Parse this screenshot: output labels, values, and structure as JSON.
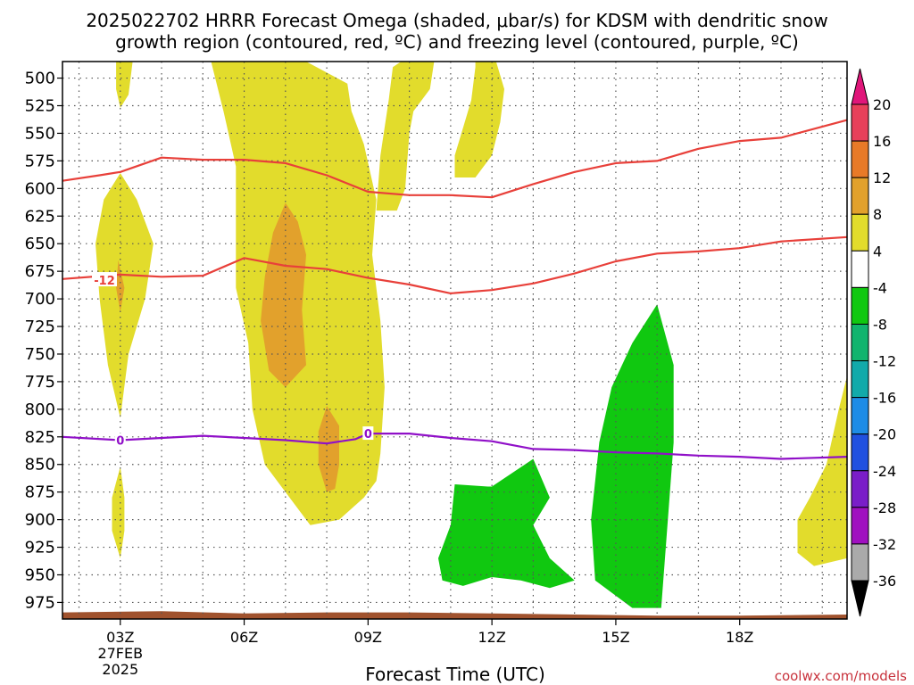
{
  "chart_data": {
    "type": "heatmap",
    "title_line1": "2025022702 HRRR Forecast Omega (shaded, μbar/s) for KDSM with dendritic snow",
    "title_line2": "growth region (contoured, red, ºC) and freezing level (contoured, purple, ºC)",
    "xlabel": "Forecast Time (UTC)",
    "credit": "coolwx.com/models",
    "x_range": [
      1.6,
      20.6
    ],
    "y_range": [
      485,
      990
    ],
    "y_ticks": [
      "500",
      "525",
      "550",
      "575",
      "600",
      "625",
      "650",
      "675",
      "700",
      "725",
      "750",
      "775",
      "800",
      "825",
      "850",
      "875",
      "900",
      "925",
      "950",
      "975"
    ],
    "x_ticks": [
      {
        "x": 3,
        "label": "03Z",
        "date": "27FEB",
        "year": "2025"
      },
      {
        "x": 6,
        "label": "06Z"
      },
      {
        "x": 9,
        "label": "09Z"
      },
      {
        "x": 12,
        "label": "12Z"
      },
      {
        "x": 15,
        "label": "15Z"
      },
      {
        "x": 18,
        "label": "18Z"
      }
    ],
    "colorbar": {
      "labels": [
        "20",
        "16",
        "12",
        "8",
        "4",
        "-4",
        "-8",
        "-12",
        "-16",
        "-20",
        "-24",
        "-28",
        "-32",
        "-36"
      ],
      "colors": [
        "#e8405a",
        "#e87a28",
        "#e2a12c",
        "#e2dc2c",
        "#ffffff",
        "#10c810",
        "#12b46e",
        "#12aaaa",
        "#1e8ce6",
        "#2050e0",
        "#7a1ec8",
        "#a010c0",
        "#aaaaaa"
      ],
      "top_arrow_color": "#e0167a",
      "bottom_arrow_color": "#000000"
    },
    "series": [
      {
        "color": "#e8403a",
        "label": "-12",
        "label_at": [
          2.4,
          683
        ],
        "points": [
          [
            1.6,
            682
          ],
          [
            3,
            678
          ],
          [
            4,
            680
          ],
          [
            5,
            679
          ],
          [
            6,
            663
          ],
          [
            7,
            670
          ],
          [
            8,
            673
          ],
          [
            9,
            681
          ],
          [
            10,
            687
          ],
          [
            11,
            695
          ],
          [
            12,
            692
          ],
          [
            13,
            686
          ],
          [
            14,
            677
          ],
          [
            15,
            666
          ],
          [
            16,
            659
          ],
          [
            17,
            657
          ],
          [
            18,
            654
          ],
          [
            19,
            648
          ],
          [
            20.6,
            644
          ]
        ]
      },
      {
        "color": "#e8403a",
        "points": [
          [
            1.6,
            593
          ],
          [
            2.5,
            588
          ],
          [
            3,
            585
          ],
          [
            4,
            572
          ],
          [
            5,
            574
          ],
          [
            6,
            574
          ],
          [
            7,
            577
          ],
          [
            8,
            588
          ],
          [
            9,
            603
          ],
          [
            10,
            606
          ],
          [
            11,
            606
          ],
          [
            12,
            608
          ],
          [
            13,
            596
          ],
          [
            14,
            585
          ],
          [
            15,
            577
          ],
          [
            16,
            575
          ],
          [
            17,
            564
          ],
          [
            18,
            557
          ],
          [
            19,
            554
          ],
          [
            20.6,
            538
          ]
        ]
      },
      {
        "color": "#9010c8",
        "label": "0",
        "points": [
          [
            1.6,
            825
          ],
          [
            3,
            828
          ],
          [
            4,
            826
          ],
          [
            5,
            824
          ],
          [
            6,
            826
          ],
          [
            7,
            828
          ],
          [
            8,
            831
          ],
          [
            8.7,
            827
          ],
          [
            9,
            822
          ],
          [
            10,
            822
          ],
          [
            11,
            826
          ],
          [
            12,
            829
          ],
          [
            13,
            836
          ],
          [
            14,
            837
          ],
          [
            15,
            839
          ],
          [
            16,
            840
          ],
          [
            17,
            842
          ],
          [
            18,
            843
          ],
          [
            19,
            845
          ],
          [
            20.6,
            843
          ]
        ]
      }
    ],
    "contour_labels": [
      {
        "text": "0",
        "x": 3.0,
        "y": 828
      },
      {
        "text": "0",
        "x": 9.0,
        "y": 822
      }
    ],
    "regions": [
      {
        "color": "#e2dc2c",
        "points": [
          [
            2.9,
            485
          ],
          [
            3.3,
            485
          ],
          [
            3.2,
            515
          ],
          [
            3.0,
            527
          ],
          [
            2.9,
            510
          ]
        ]
      },
      {
        "color": "#e2dc2c",
        "points": [
          [
            6.0,
            485
          ],
          [
            7.5,
            485
          ],
          [
            8.5,
            505
          ],
          [
            8.6,
            530
          ],
          [
            8.9,
            560
          ],
          [
            9.2,
            610
          ],
          [
            9.1,
            660
          ],
          [
            9.3,
            720
          ],
          [
            9.4,
            780
          ],
          [
            9.3,
            840
          ],
          [
            9.2,
            865
          ],
          [
            8.9,
            880
          ],
          [
            8.3,
            900
          ],
          [
            7.6,
            905
          ],
          [
            7.3,
            890
          ],
          [
            6.5,
            850
          ],
          [
            6.2,
            800
          ],
          [
            6.1,
            740
          ],
          [
            5.8,
            690
          ],
          [
            5.8,
            640
          ],
          [
            5.8,
            580
          ],
          [
            5.5,
            530
          ],
          [
            5.2,
            485
          ]
        ]
      },
      {
        "color": "#e2dc2c",
        "points": [
          [
            9.8,
            485
          ],
          [
            10.6,
            485
          ],
          [
            10.5,
            510
          ],
          [
            10.1,
            530
          ],
          [
            10.0,
            550
          ],
          [
            9.9,
            600
          ],
          [
            9.7,
            620
          ],
          [
            9.2,
            620
          ],
          [
            9.3,
            570
          ],
          [
            9.5,
            520
          ],
          [
            9.6,
            490
          ]
        ]
      },
      {
        "color": "#e2dc2c",
        "points": [
          [
            11.6,
            485
          ],
          [
            12.1,
            485
          ],
          [
            12.3,
            510
          ],
          [
            12.2,
            540
          ],
          [
            12.0,
            570
          ],
          [
            11.6,
            590
          ],
          [
            11.1,
            590
          ],
          [
            11.1,
            570
          ],
          [
            11.3,
            545
          ],
          [
            11.5,
            520
          ],
          [
            11.6,
            490
          ]
        ]
      },
      {
        "color": "#e2dc2c",
        "points": [
          [
            3.0,
            586
          ],
          [
            3.4,
            610
          ],
          [
            3.8,
            650
          ],
          [
            3.6,
            700
          ],
          [
            3.2,
            750
          ],
          [
            3.0,
            808
          ],
          [
            2.7,
            760
          ],
          [
            2.5,
            700
          ],
          [
            2.4,
            650
          ],
          [
            2.6,
            610
          ]
        ]
      },
      {
        "color": "#e2dc2c",
        "points": [
          [
            3.0,
            852
          ],
          [
            3.1,
            880
          ],
          [
            3.1,
            910
          ],
          [
            3.0,
            935
          ],
          [
            2.8,
            910
          ],
          [
            2.8,
            880
          ]
        ]
      },
      {
        "color": "#e2dc2c",
        "points": [
          [
            20.6,
            770
          ],
          [
            20.6,
            935
          ],
          [
            19.8,
            942
          ],
          [
            19.4,
            930
          ],
          [
            19.4,
            900
          ],
          [
            19.7,
            880
          ],
          [
            20.1,
            850
          ],
          [
            20.4,
            800
          ]
        ]
      },
      {
        "color": "#e2a12c",
        "points": [
          [
            7.0,
            613
          ],
          [
            7.3,
            630
          ],
          [
            7.5,
            660
          ],
          [
            7.4,
            710
          ],
          [
            7.5,
            760
          ],
          [
            7.0,
            780
          ],
          [
            6.6,
            765
          ],
          [
            6.4,
            720
          ],
          [
            6.5,
            680
          ],
          [
            6.7,
            640
          ]
        ]
      },
      {
        "color": "#e2a12c",
        "points": [
          [
            2.95,
            665
          ],
          [
            3.1,
            690
          ],
          [
            3.0,
            712
          ],
          [
            2.9,
            690
          ]
        ]
      },
      {
        "color": "#e2a12c",
        "points": [
          [
            8.0,
            797
          ],
          [
            8.3,
            815
          ],
          [
            8.3,
            850
          ],
          [
            8.2,
            872
          ],
          [
            8.0,
            875
          ],
          [
            7.8,
            850
          ],
          [
            7.8,
            820
          ]
        ]
      },
      {
        "color": "#10c810",
        "points": [
          [
            16.0,
            705
          ],
          [
            16.4,
            760
          ],
          [
            16.4,
            830
          ],
          [
            16.3,
            880
          ],
          [
            16.1,
            980
          ],
          [
            15.4,
            980
          ],
          [
            14.5,
            955
          ],
          [
            14.4,
            900
          ],
          [
            14.6,
            830
          ],
          [
            14.9,
            780
          ],
          [
            15.4,
            740
          ]
        ]
      },
      {
        "color": "#10c810",
        "points": [
          [
            11.1,
            868
          ],
          [
            11.9,
            870
          ],
          [
            12.0,
            870
          ],
          [
            13.0,
            845
          ],
          [
            13.4,
            880
          ],
          [
            13.0,
            905
          ],
          [
            13.4,
            935
          ],
          [
            14.0,
            955
          ],
          [
            13.4,
            962
          ],
          [
            12.7,
            955
          ],
          [
            12.0,
            952
          ],
          [
            11.3,
            960
          ],
          [
            10.8,
            955
          ],
          [
            10.7,
            935
          ],
          [
            11.0,
            905
          ]
        ]
      }
    ],
    "terrain": {
      "color": "#a0522d",
      "top": [
        [
          1.6,
          984
        ],
        [
          4,
          983
        ],
        [
          6,
          985
        ],
        [
          8,
          984
        ],
        [
          10,
          984
        ],
        [
          12,
          985
        ],
        [
          14,
          986
        ],
        [
          16,
          987
        ],
        [
          18,
          987
        ],
        [
          20.6,
          986
        ]
      ]
    }
  }
}
